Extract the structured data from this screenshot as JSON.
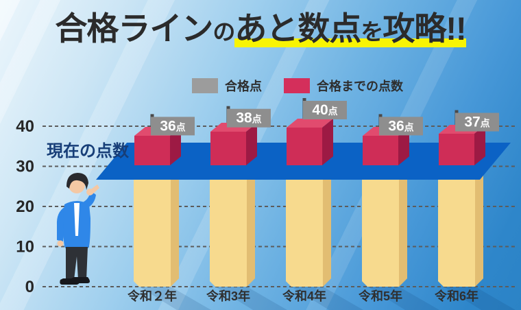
{
  "title": {
    "segments": [
      {
        "text": "合格ライン",
        "small": false,
        "highlight": false
      },
      {
        "text": "の",
        "small": true,
        "highlight": false
      },
      {
        "text": "あと数点",
        "small": false,
        "highlight": true
      },
      {
        "text": "を",
        "small": true,
        "highlight": true
      },
      {
        "text": "攻略!!",
        "small": false,
        "highlight": true
      }
    ],
    "highlight_color": "#f8f404",
    "text_color": "#2b2b2b"
  },
  "legend": {
    "items": [
      {
        "label": "合格点",
        "color": "#9c9c9c"
      },
      {
        "label": "合格までの点数",
        "color": "#d42f5b"
      }
    ]
  },
  "chart_data": {
    "type": "bar",
    "title": "合格ラインのあと数点を攻略!!",
    "categories": [
      "令和２年",
      "令和3年",
      "令和4年",
      "令和5年",
      "令和6年"
    ],
    "series": [
      {
        "name": "合格点",
        "values": [
          36,
          38,
          40,
          36,
          37
        ],
        "color": "#9c9c9c",
        "role": "flag-scores"
      },
      {
        "name": "合格までの点数",
        "values": [
          6,
          8,
          10,
          6,
          7
        ],
        "color": "#d42f5b",
        "role": "red-gap-cubes"
      }
    ],
    "flag_labels": [
      "36点",
      "38点",
      "40点",
      "36点",
      "37点"
    ],
    "flag_suffix": "点",
    "current_score_band": {
      "label": "現在の点数",
      "approx_from": 27,
      "approx_to": 35
    },
    "ylim": [
      0,
      40
    ],
    "yticks": [
      0,
      10,
      20,
      30,
      40
    ],
    "grid": "dashed-horizontal",
    "legend_position": "top-center"
  },
  "colors": {
    "band": "#0b62c5",
    "cube_top": "#e14b6e",
    "cube_front": "#cf2d57",
    "cube_side": "#9d1a44",
    "column_front": "#f7da8e",
    "column_side": "#e2bd72",
    "flag_box": "#8e8e8e",
    "flag_pole": "#4a4a4a",
    "flag_text": "#ffffff",
    "gridline": "#5c5c5c",
    "axis_text": "#262626",
    "band_label_text": "#173e78"
  }
}
